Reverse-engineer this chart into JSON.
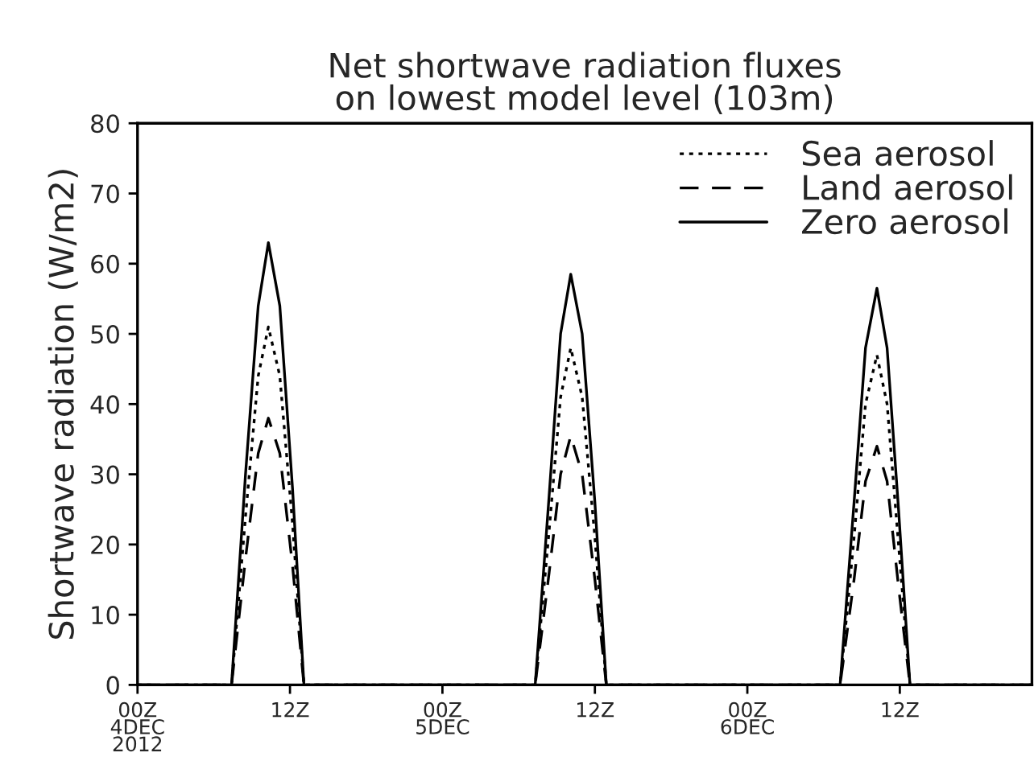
{
  "chart_data": {
    "type": "line",
    "title": "Net shortwave radiation fluxes\non lowest model level (103m)",
    "ylabel": "Shortwave radiation (W/m2)",
    "x": [
      "2012-12-04T00:00",
      "2012-12-04T07:24",
      "2012-12-04T08:30",
      "2012-12-04T09:30",
      "2012-12-04T10:18",
      "2012-12-04T11:12",
      "2012-12-04T12:12",
      "2012-12-04T13:06",
      "2012-12-05T07:18",
      "2012-12-05T08:24",
      "2012-12-05T09:18",
      "2012-12-05T10:06",
      "2012-12-05T11:00",
      "2012-12-05T12:00",
      "2012-12-05T12:54",
      "2012-12-06T07:18",
      "2012-12-06T08:24",
      "2012-12-06T09:18",
      "2012-12-06T10:12",
      "2012-12-06T11:00",
      "2012-12-06T11:54",
      "2012-12-06T12:48",
      "2012-12-06T22:24"
    ],
    "series": [
      {
        "name": "Sea aerosol",
        "color": "#000000",
        "line_style": "dotted",
        "values": [
          0,
          0,
          24,
          44,
          51,
          44,
          23,
          0,
          0,
          22,
          41,
          48,
          41,
          21,
          0,
          0,
          21,
          40,
          47,
          40,
          20,
          0,
          0
        ]
      },
      {
        "name": "Land aerosol",
        "color": "#000000",
        "line_style": "dashed",
        "values": [
          0,
          0,
          18,
          33,
          38,
          33,
          17,
          0,
          0,
          16,
          30,
          35.5,
          30,
          15,
          0,
          0,
          15,
          29,
          34,
          29,
          14,
          0,
          0
        ]
      },
      {
        "name": "Zero aerosol",
        "color": "#000000",
        "line_style": "solid",
        "values": [
          0,
          0,
          30,
          54,
          63,
          54,
          28,
          0,
          0,
          27,
          50,
          58.5,
          50,
          26,
          0,
          0,
          26,
          48,
          56.5,
          48,
          25,
          0,
          0
        ]
      }
    ],
    "xlim": [
      "2012-12-04T00:00",
      "2012-12-06T22:24"
    ],
    "xticks": [
      {
        "value": "2012-12-04T00:00",
        "label": "00Z\n4DEC\n2012"
      },
      {
        "value": "2012-12-04T12:00",
        "label": "12Z"
      },
      {
        "value": "2012-12-05T00:00",
        "label": "00Z\n5DEC"
      },
      {
        "value": "2012-12-05T12:00",
        "label": "12Z"
      },
      {
        "value": "2012-12-06T00:00",
        "label": "00Z\n6DEC"
      },
      {
        "value": "2012-12-06T12:00",
        "label": "12Z"
      }
    ],
    "ylim": [
      0,
      80
    ],
    "yticks": [
      0,
      10,
      20,
      30,
      40,
      50,
      60,
      70,
      80
    ],
    "grid": false,
    "legend": "top right"
  }
}
